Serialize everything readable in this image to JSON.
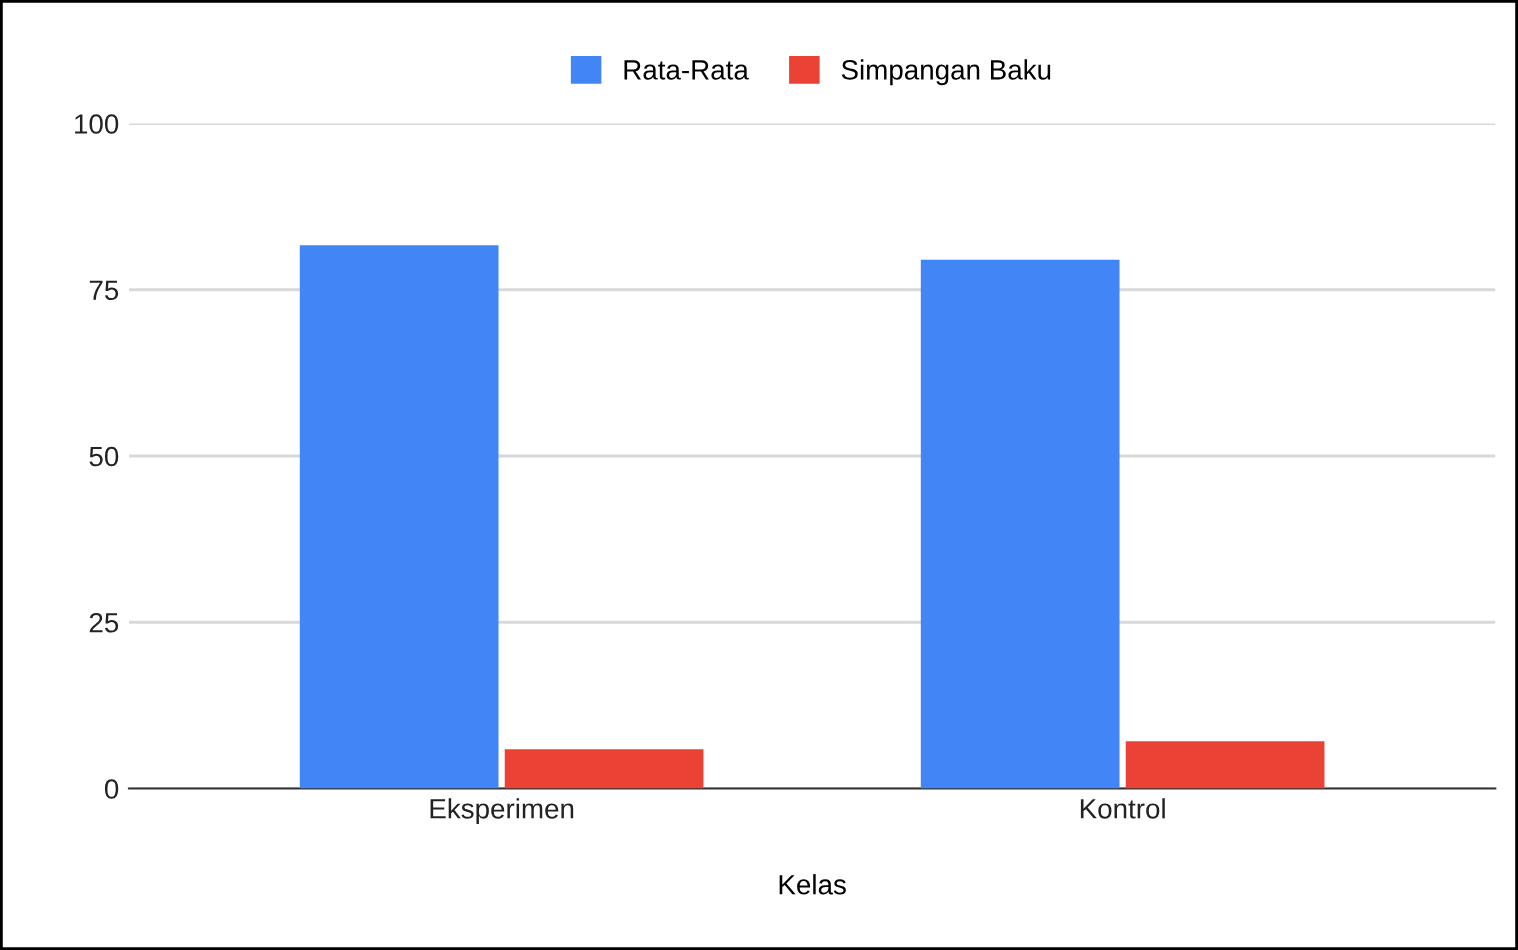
{
  "chart_data": {
    "type": "bar",
    "xlabel": "Kelas",
    "categories": [
      "Eksperimen",
      "Kontrol"
    ],
    "series": [
      {
        "name": "Rata-Rata",
        "color": "#4285f4",
        "values": [
          81.7,
          79.5
        ]
      },
      {
        "name": "Simpangan Baku",
        "color": "#ea4335",
        "values": [
          5.9,
          7.1
        ]
      }
    ],
    "ylim": [
      0,
      100
    ],
    "yticks": [
      0,
      25,
      50,
      75,
      100
    ],
    "grid": "y",
    "legend": "top"
  }
}
